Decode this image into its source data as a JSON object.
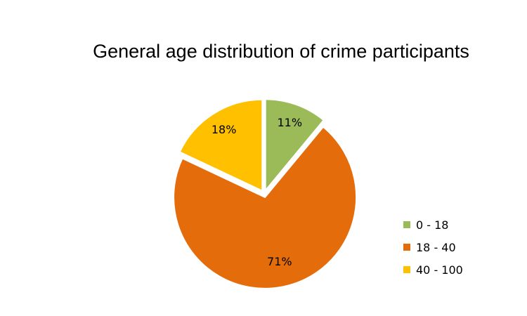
{
  "chart_data": {
    "type": "pie",
    "title": "General age distribution of crime participants",
    "categories": [
      "0 - 18",
      "18 - 40",
      "40 - 100"
    ],
    "values": [
      11,
      71,
      18
    ],
    "labels": [
      "11%",
      "71%",
      "18%"
    ],
    "colors": [
      "#9BBB59",
      "#E46C0A",
      "#FFC000"
    ],
    "exploded": true,
    "legend_position": "right"
  }
}
